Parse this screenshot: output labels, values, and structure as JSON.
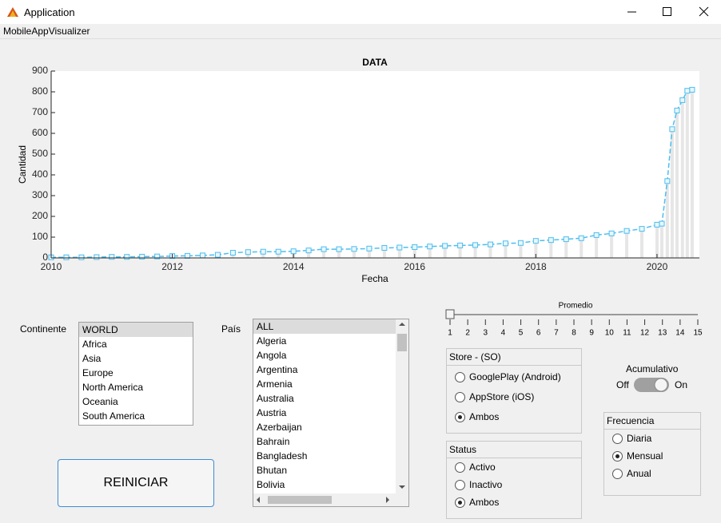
{
  "window": {
    "title": "Application"
  },
  "menu": {
    "items": [
      "MobileAppVisualizer"
    ]
  },
  "chart_data": {
    "type": "bar",
    "title": "DATA",
    "x_label": "Fecha",
    "y_label": "Cantidad",
    "x": [
      2010,
      2010.25,
      2010.5,
      2010.75,
      2011,
      2011.25,
      2011.5,
      2011.75,
      2012,
      2012.25,
      2012.5,
      2012.75,
      2013,
      2013.25,
      2013.5,
      2013.75,
      2014,
      2014.25,
      2014.5,
      2014.75,
      2015,
      2015.25,
      2015.5,
      2015.75,
      2016,
      2016.25,
      2016.5,
      2016.75,
      2017,
      2017.25,
      2017.5,
      2017.75,
      2018,
      2018.25,
      2018.5,
      2018.75,
      2019,
      2019.25,
      2019.5,
      2019.75,
      2020,
      2020.08,
      2020.17,
      2020.25,
      2020.33,
      2020.42,
      2020.5,
      2020.58
    ],
    "values": [
      3,
      3,
      3,
      4,
      5,
      5,
      6,
      7,
      9,
      10,
      12,
      15,
      25,
      28,
      30,
      30,
      32,
      36,
      42,
      42,
      43,
      45,
      48,
      50,
      52,
      55,
      58,
      60,
      62,
      65,
      70,
      72,
      82,
      86,
      90,
      95,
      110,
      118,
      130,
      140,
      160,
      165,
      370,
      620,
      710,
      760,
      805,
      810
    ],
    "bar_color": "#e6e6e6",
    "line_color": "#4dbeee",
    "xlim": [
      2010,
      2020.7
    ],
    "xticks": [
      2010,
      2012,
      2014,
      2016,
      2018,
      2020
    ],
    "ylim": [
      0,
      900
    ],
    "yticks": [
      0,
      100,
      200,
      300,
      400,
      500,
      600,
      700,
      800,
      900
    ]
  },
  "continent": {
    "label": "Continente",
    "items": [
      "WORLD",
      "Africa",
      "Asia",
      "Europe",
      "North America",
      "Oceania",
      "South America"
    ],
    "selected": 0
  },
  "country": {
    "label": "País",
    "items": [
      "ALL",
      "Algeria",
      "Angola",
      "Argentina",
      "Armenia",
      "Australia",
      "Austria",
      "Azerbaijan",
      "Bahrain",
      "Bangladesh",
      "Bhutan",
      "Bolivia"
    ],
    "selected": 0
  },
  "average": {
    "label": "Promedio",
    "ticks": [
      1,
      2,
      3,
      4,
      5,
      6,
      7,
      8,
      9,
      10,
      11,
      12,
      13,
      14,
      15
    ],
    "value": 1
  },
  "store": {
    "title": "Store - (SO)",
    "options": [
      "GooglePlay (Android)",
      "AppStore (iOS)",
      "Ambos"
    ],
    "selected": 2
  },
  "cumulative": {
    "label": "Acumulativo",
    "off": "Off",
    "on": "On"
  },
  "status": {
    "title": "Status",
    "options": [
      "Activo",
      "Inactivo",
      "Ambos"
    ],
    "selected": 2
  },
  "frequency": {
    "title": "Frecuencia",
    "options": [
      "Diaria",
      "Mensual",
      "Anual"
    ],
    "selected": 1
  },
  "reset_button": {
    "label": "REINICIAR"
  }
}
